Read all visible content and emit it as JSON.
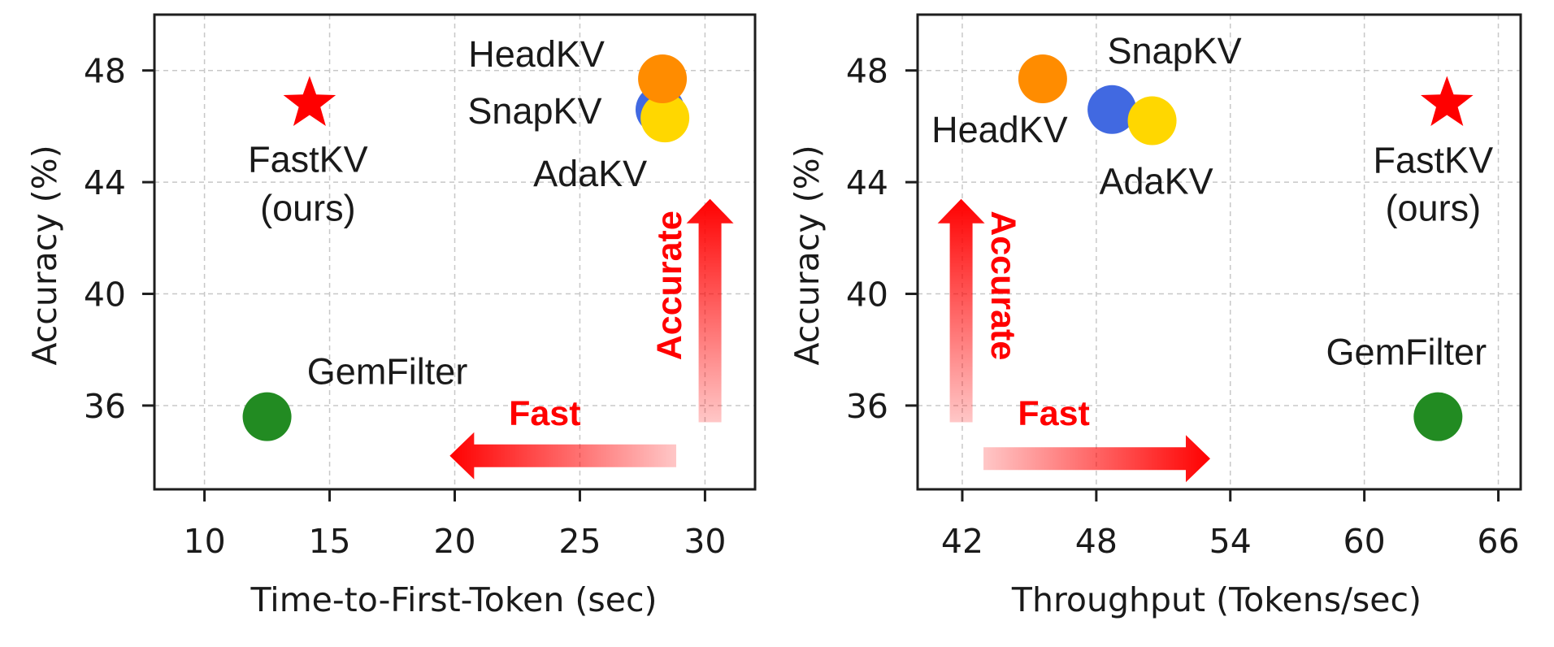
{
  "chart_data": [
    {
      "type": "scatter",
      "title": "",
      "xlabel": "Time-to-First-Token (sec)",
      "ylabel": "Accuracy (%)",
      "xlim": [
        8,
        32
      ],
      "ylim": [
        33,
        50
      ],
      "xticks": [
        10,
        15,
        20,
        25,
        30
      ],
      "xtick_labels": [
        "10",
        "15",
        "20",
        "25",
        "30"
      ],
      "yticks": [
        36,
        40,
        44,
        48
      ],
      "ytick_labels": [
        "36",
        "40",
        "44",
        "48"
      ],
      "grid": true,
      "legend": "none",
      "points": [
        {
          "name": "HeadKV",
          "label": "HeadKV",
          "x": 28.3,
          "y": 47.7,
          "marker": "circle",
          "color": "#ff8c00"
        },
        {
          "name": "SnapKV",
          "label": "SnapKV",
          "x": 28.2,
          "y": 46.6,
          "marker": "circle",
          "color": "#4169e1"
        },
        {
          "name": "AdaKV",
          "label": "AdaKV",
          "x": 28.4,
          "y": 46.3,
          "marker": "circle",
          "color": "#ffd700"
        },
        {
          "name": "GemFilter",
          "label": "GemFilter",
          "x": 12.5,
          "y": 35.6,
          "marker": "circle",
          "color": "#228b22"
        },
        {
          "name": "FastKV",
          "label": "FastKV",
          "sublabel": "(ours)",
          "x": 14.2,
          "y": 46.9,
          "marker": "star",
          "color": "#ff0000"
        }
      ],
      "annotations": {
        "fast": "Fast",
        "accurate": "Accurate",
        "fast_direction": "left",
        "accurate_direction": "up",
        "arrow_color": "#ff0000"
      }
    },
    {
      "type": "scatter",
      "title": "",
      "xlabel": "Throughput (Tokens/sec)",
      "ylabel": "Accuracy (%)",
      "xlim": [
        40,
        67
      ],
      "ylim": [
        33,
        50
      ],
      "xticks": [
        42,
        48,
        54,
        60,
        66
      ],
      "xtick_labels": [
        "42",
        "48",
        "54",
        "60",
        "66"
      ],
      "yticks": [
        36,
        40,
        44,
        48
      ],
      "ytick_labels": [
        "36",
        "40",
        "44",
        "48"
      ],
      "grid": true,
      "legend": "none",
      "points": [
        {
          "name": "HeadKV",
          "label": "HeadKV",
          "x": 45.6,
          "y": 47.7,
          "marker": "circle",
          "color": "#ff8c00"
        },
        {
          "name": "SnapKV",
          "label": "SnapKV",
          "x": 48.7,
          "y": 46.6,
          "marker": "circle",
          "color": "#4169e1"
        },
        {
          "name": "AdaKV",
          "label": "AdaKV",
          "x": 50.5,
          "y": 46.2,
          "marker": "circle",
          "color": "#ffd700"
        },
        {
          "name": "GemFilter",
          "label": "GemFilter",
          "x": 63.3,
          "y": 35.6,
          "marker": "circle",
          "color": "#228b22"
        },
        {
          "name": "FastKV",
          "label": "FastKV",
          "sublabel": "(ours)",
          "x": 63.7,
          "y": 46.9,
          "marker": "star",
          "color": "#ff0000"
        }
      ],
      "annotations": {
        "fast": "Fast",
        "accurate": "Accurate",
        "fast_direction": "right",
        "accurate_direction": "up",
        "arrow_color": "#ff0000"
      }
    }
  ]
}
